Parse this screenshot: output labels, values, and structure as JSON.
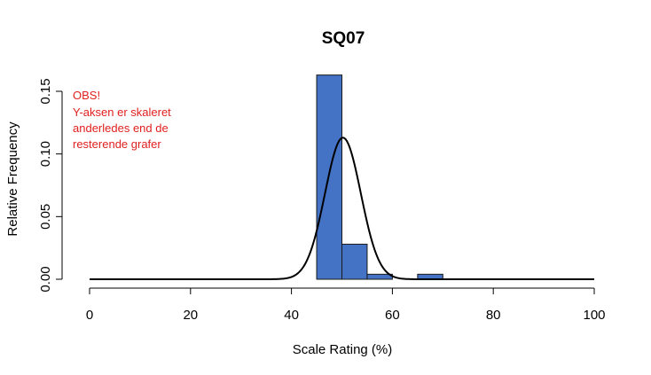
{
  "chart_data": {
    "type": "bar",
    "title": "SQ07",
    "xlabel": "Scale Rating (%)",
    "ylabel": "Relative Frequency",
    "xlim": [
      0,
      100
    ],
    "ylim": [
      0,
      0.15
    ],
    "x_ticks": [
      "0",
      "20",
      "40",
      "60",
      "80",
      "100"
    ],
    "y_ticks": [
      "0.00",
      "0.05",
      "0.10",
      "0.15"
    ],
    "bin_width": 5,
    "bins": [
      {
        "start": 45,
        "end": 50,
        "value": 0.163
      },
      {
        "start": 50,
        "end": 55,
        "value": 0.028
      },
      {
        "start": 55,
        "end": 60,
        "value": 0.004
      },
      {
        "start": 60,
        "end": 65,
        "value": 0.0
      },
      {
        "start": 65,
        "end": 70,
        "value": 0.004
      }
    ],
    "density_curve": {
      "type": "normal",
      "mean": 50.2,
      "peak": 0.113
    },
    "bar_color": "#4472c4",
    "annotation": [
      "OBS!",
      "Y-aksen er skaleret",
      "anderledes end de",
      "resterende grafer"
    ],
    "annotation_color": "#e0201e"
  }
}
